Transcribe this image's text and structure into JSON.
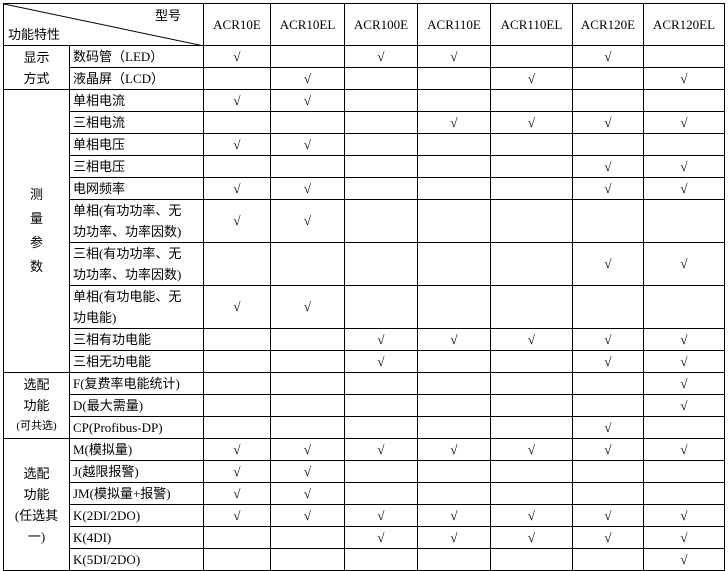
{
  "header": {
    "corner_top": "型号",
    "corner_bottom": "功能特性",
    "models": [
      "ACR10E",
      "ACR10EL",
      "ACR100E",
      "ACR110E",
      "ACR110EL",
      "ACR120E",
      "ACR120EL"
    ]
  },
  "check_symbol": "√",
  "groups": [
    {
      "label_lines": [
        "显示",
        "方式"
      ],
      "vertical": false,
      "rows": [
        {
          "feature": [
            "数码管（LED）"
          ],
          "marks": [
            1,
            0,
            1,
            1,
            0,
            1,
            0
          ]
        },
        {
          "feature": [
            "液晶屏（LCD）"
          ],
          "marks": [
            0,
            1,
            0,
            0,
            1,
            0,
            1
          ]
        }
      ]
    },
    {
      "label_lines": [
        "测",
        "量",
        "参",
        "数"
      ],
      "vertical": true,
      "rows": [
        {
          "feature": [
            "单相电流"
          ],
          "marks": [
            1,
            1,
            0,
            0,
            0,
            0,
            0
          ]
        },
        {
          "feature": [
            "三相电流"
          ],
          "marks": [
            0,
            0,
            0,
            1,
            1,
            1,
            1
          ]
        },
        {
          "feature": [
            "单相电压"
          ],
          "marks": [
            1,
            1,
            0,
            0,
            0,
            0,
            0
          ]
        },
        {
          "feature": [
            "三相电压"
          ],
          "marks": [
            0,
            0,
            0,
            0,
            0,
            1,
            1
          ]
        },
        {
          "feature": [
            "电网频率"
          ],
          "marks": [
            1,
            1,
            0,
            0,
            0,
            1,
            1
          ]
        },
        {
          "feature": [
            "单相(有功功率、无",
            "功功率、功率因数)"
          ],
          "marks": [
            1,
            1,
            0,
            0,
            0,
            0,
            0
          ]
        },
        {
          "feature": [
            "三相(有功功率、无",
            "功功率、功率因数)"
          ],
          "marks": [
            0,
            0,
            0,
            0,
            0,
            1,
            1
          ]
        },
        {
          "feature": [
            "单相(有功电能、无",
            "功电能)"
          ],
          "marks": [
            1,
            1,
            0,
            0,
            0,
            0,
            0
          ]
        },
        {
          "feature": [
            "三相有功电能"
          ],
          "marks": [
            0,
            0,
            1,
            1,
            1,
            1,
            1
          ]
        },
        {
          "feature": [
            "三相无功电能"
          ],
          "marks": [
            0,
            0,
            1,
            0,
            0,
            1,
            1
          ]
        }
      ]
    },
    {
      "label_lines": [
        "选配",
        "功能",
        "(可共选)"
      ],
      "vertical": false,
      "rows": [
        {
          "feature": [
            "F(复费率电能统计)"
          ],
          "marks": [
            0,
            0,
            0,
            0,
            0,
            0,
            1
          ]
        },
        {
          "feature": [
            "D(最大需量)"
          ],
          "marks": [
            0,
            0,
            0,
            0,
            0,
            0,
            1
          ]
        },
        {
          "feature": [
            "CP(Profibus-DP)"
          ],
          "marks": [
            0,
            0,
            0,
            0,
            0,
            1,
            0
          ]
        }
      ]
    },
    {
      "label_lines": [
        "选配",
        "功能",
        "(任选其",
        "一)"
      ],
      "vertical": false,
      "rows": [
        {
          "feature": [
            "M(模拟量)"
          ],
          "marks": [
            1,
            1,
            1,
            1,
            1,
            1,
            1
          ]
        },
        {
          "feature": [
            "J(越限报警)"
          ],
          "marks": [
            1,
            1,
            0,
            0,
            0,
            0,
            0
          ]
        },
        {
          "feature": [
            "JM(模拟量+报警)"
          ],
          "marks": [
            1,
            1,
            0,
            0,
            0,
            0,
            0
          ]
        },
        {
          "feature": [
            "K(2DI/2DO)"
          ],
          "marks": [
            1,
            1,
            1,
            1,
            1,
            1,
            1
          ]
        },
        {
          "feature": [
            "K(4DI)"
          ],
          "marks": [
            0,
            0,
            1,
            1,
            1,
            1,
            1
          ]
        },
        {
          "feature": [
            "K(5DI/2DO)"
          ],
          "marks": [
            0,
            0,
            0,
            0,
            0,
            0,
            1
          ]
        }
      ]
    }
  ]
}
